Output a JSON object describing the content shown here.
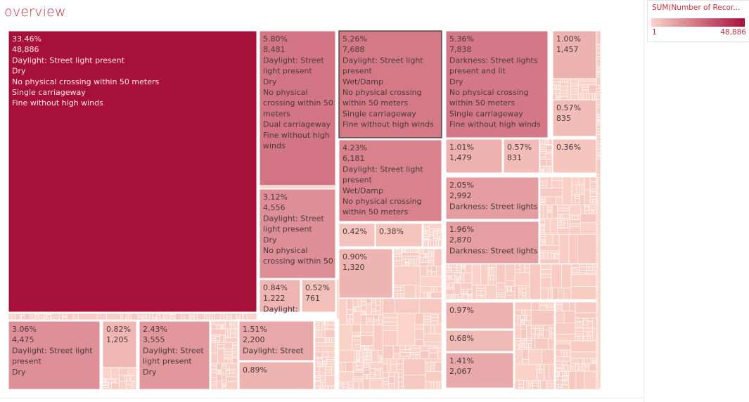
{
  "sheet": {
    "title": "overview"
  },
  "legend": {
    "title": "SUM(Number of Recor...",
    "min_label": "1",
    "max_label": "48,886",
    "min_color": "#fbd3c8",
    "max_color": "#a8103c"
  },
  "colors": {
    "light": "#fbd3c8",
    "dark": "#a8103c"
  },
  "chart_data": {
    "type": "treemap",
    "measure": "SUM(Number of Records)",
    "range": [
      1,
      48886
    ],
    "labeled_cells": [
      {
        "id": "c1",
        "value": 48886,
        "lines": [
          "33.46%",
          "48,886",
          "Daylight: Street light present",
          "Dry",
          "No physical crossing within 50 meters",
          "Single carriageway",
          "Fine without high winds"
        ]
      },
      {
        "id": "c2",
        "value": 8481,
        "lines": [
          "5.80%",
          "8,481",
          "Daylight: Street",
          "light present",
          "Dry",
          "No physical",
          "crossing within 50",
          "meters",
          "Dual carriageway",
          "Fine without high",
          "winds"
        ]
      },
      {
        "id": "c3",
        "value": 4556,
        "lines": [
          "3.12%",
          "4,556",
          "Daylight: Street",
          "light present",
          "Dry",
          "No physical",
          "crossing within 50"
        ]
      },
      {
        "id": "c4",
        "value": 1222,
        "lines": [
          "0.84%",
          "1,222",
          "Daylight:"
        ]
      },
      {
        "id": "c5",
        "value": 761,
        "lines": [
          "0.52%",
          "761"
        ]
      },
      {
        "id": "c6",
        "value": 7688,
        "lines": [
          "5.26%",
          "7,688",
          "Daylight: Street light",
          "present",
          "Wet/Damp",
          "No physical crossing",
          "within 50 meters",
          "Single carriageway",
          "Fine without high winds"
        ]
      },
      {
        "id": "c7",
        "value": 6181,
        "lines": [
          "4.23%",
          "6,181",
          "Daylight: Street light",
          "present",
          "Wet/Damp",
          "No physical crossing",
          "within 50 meters"
        ]
      },
      {
        "id": "c8",
        "value": 614,
        "lines": [
          "0.42%"
        ]
      },
      {
        "id": "c9",
        "value": 555,
        "lines": [
          "0.38%"
        ]
      },
      {
        "id": "c10",
        "value": 1320,
        "lines": [
          "0.90%",
          "1,320"
        ]
      },
      {
        "id": "c11",
        "value": 7838,
        "lines": [
          "5.36%",
          "7,838",
          "Darkness: Street lights",
          "present and lit",
          "Dry",
          "No physical crossing",
          "within 50 meters",
          "Single carriageway",
          "Fine without high winds"
        ]
      },
      {
        "id": "c12",
        "value": 1457,
        "lines": [
          "1.00%",
          "1,457"
        ]
      },
      {
        "id": "c13",
        "value": 835,
        "lines": [
          "0.57%",
          "835"
        ]
      },
      {
        "id": "c14",
        "value": 1479,
        "lines": [
          "1.01%",
          "1,479"
        ]
      },
      {
        "id": "c15",
        "value": 831,
        "lines": [
          "0.57%",
          "831"
        ]
      },
      {
        "id": "c16",
        "value": 526,
        "lines": [
          "0.36%"
        ]
      },
      {
        "id": "c17",
        "value": 2992,
        "lines": [
          "2.05%",
          "2,992",
          "Darkness: Street lights"
        ]
      },
      {
        "id": "c18",
        "value": 2870,
        "lines": [
          "1.96%",
          "2,870",
          "Darkness: Street lights"
        ]
      },
      {
        "id": "c19",
        "value": 1417,
        "lines": [
          "0.97%"
        ]
      },
      {
        "id": "c20",
        "value": 994,
        "lines": [
          "0.68%"
        ]
      },
      {
        "id": "c21",
        "value": 2067,
        "lines": [
          "1.41%",
          "2,067"
        ]
      },
      {
        "id": "c22",
        "value": 4475,
        "lines": [
          "3.06%",
          "4,475",
          "Daylight: Street light",
          "present",
          "Dry"
        ]
      },
      {
        "id": "c23",
        "value": 1205,
        "lines": [
          "0.82%",
          "1,205"
        ]
      },
      {
        "id": "c24",
        "value": 3555,
        "lines": [
          "2.43%",
          "3,555",
          "Daylight: Street",
          "light present",
          "Dry"
        ]
      },
      {
        "id": "c25",
        "value": 2200,
        "lines": [
          "1.51%",
          "2,200",
          "Daylight: Street"
        ]
      },
      {
        "id": "c26",
        "value": 1300,
        "lines": [
          "0.89%"
        ]
      }
    ]
  }
}
